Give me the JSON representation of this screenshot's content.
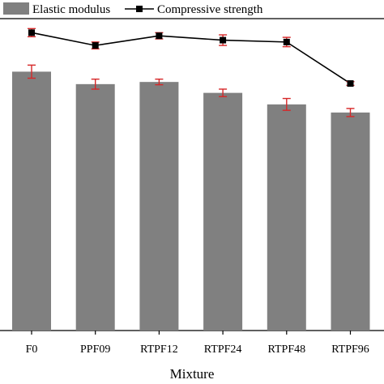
{
  "chart_data": {
    "type": "bar",
    "categories": [
      "F0",
      "PPF09",
      "RTPF12",
      "RTPF24",
      "RTPF48",
      "RTPF96"
    ],
    "xlabel": "Mixture",
    "ylabel": "",
    "y_axis_ticks_shown": false,
    "series": [
      {
        "name": "Elastic modulus",
        "kind": "bar",
        "values": [
          0.83,
          0.79,
          0.797,
          0.762,
          0.725,
          0.699
        ],
        "errors": [
          0.021,
          0.016,
          0.009,
          0.012,
          0.019,
          0.013
        ]
      },
      {
        "name": "Compressive strength",
        "kind": "line",
        "values": [
          0.955,
          0.914,
          0.945,
          0.931,
          0.925,
          0.792
        ],
        "errors": [
          0.013,
          0.011,
          0.01,
          0.017,
          0.015,
          0.006
        ]
      }
    ],
    "ylim": [
      0,
      1
    ],
    "legend_placement": "top",
    "colors": {
      "bar": "#808080",
      "line": "#000000",
      "marker": "#000000",
      "error_bar": "#d62728"
    }
  }
}
